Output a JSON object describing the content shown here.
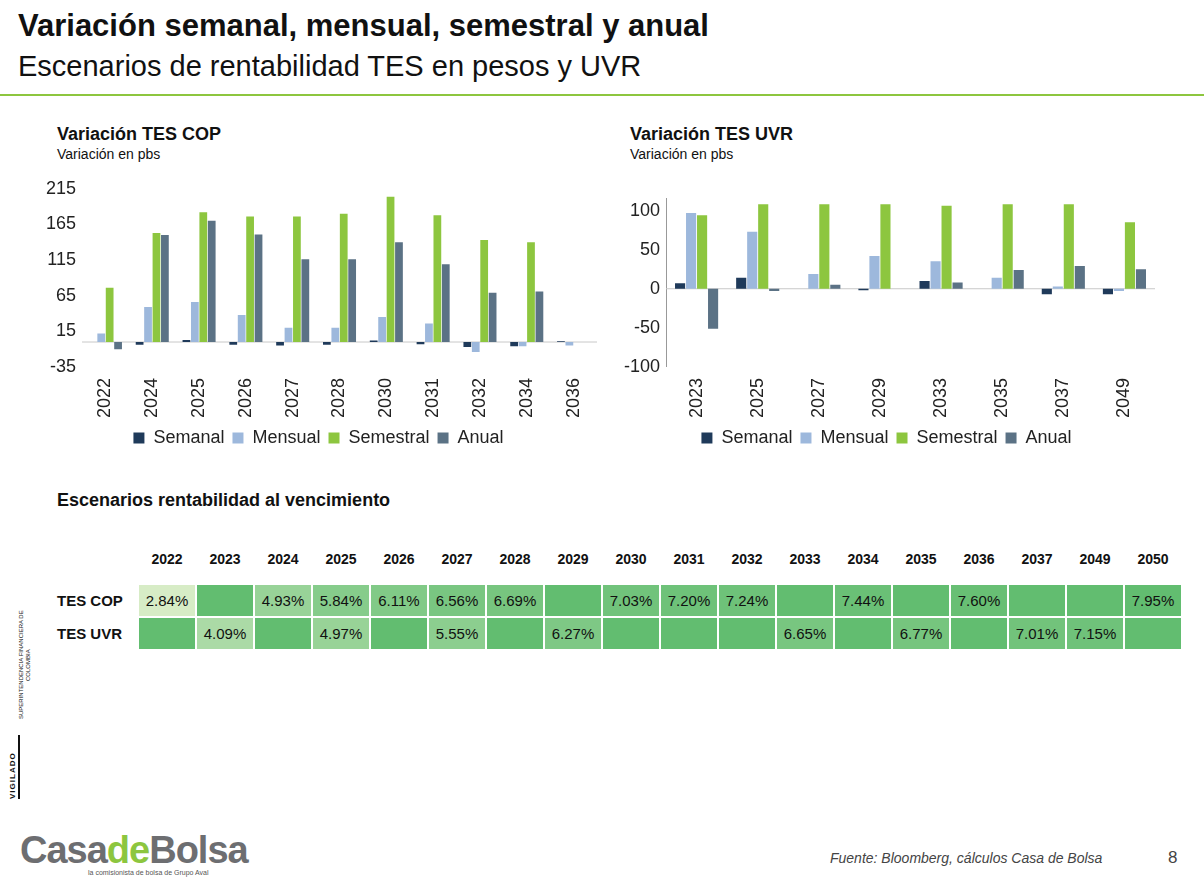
{
  "header": {
    "title": "Variación semanal, mensual, semestral y anual",
    "subtitle": "Escenarios de rentabilidad TES en pesos y UVR"
  },
  "chart_data": [
    {
      "type": "bar",
      "title": "Variación TES COP",
      "subtitle": "Variación en pbs",
      "categories": [
        "2022",
        "2024",
        "2025",
        "2026",
        "2027",
        "2028",
        "2030",
        "2031",
        "2032",
        "2034",
        "2036"
      ],
      "series": [
        {
          "name": "Semanal",
          "color": "#1f3a5a",
          "values": [
            0,
            -4,
            3,
            -4,
            -5,
            -4,
            2,
            -3,
            -7,
            -6,
            1
          ]
        },
        {
          "name": "Mensual",
          "color": "#9db8dc",
          "values": [
            12,
            49,
            56,
            38,
            20,
            20,
            35,
            26,
            -14,
            -6,
            -5
          ]
        },
        {
          "name": "Semestral",
          "color": "#8dc63f",
          "values": [
            76,
            153,
            182,
            176,
            176,
            180,
            204,
            178,
            143,
            140,
            0
          ]
        },
        {
          "name": "Anual",
          "color": "#5b7285",
          "values": [
            -10,
            150,
            170,
            151,
            116,
            116,
            140,
            109,
            69,
            71,
            0
          ]
        }
      ],
      "ylim": [
        -35,
        215
      ],
      "yticks": [
        -35,
        15,
        65,
        115,
        165,
        215
      ],
      "grid": false,
      "legend": "bottom"
    },
    {
      "type": "bar",
      "title": "Variación TES UVR",
      "subtitle": "Variación en pbs",
      "categories": [
        "2023",
        "2025",
        "2027",
        "2029",
        "2033",
        "2035",
        "2037",
        "2049"
      ],
      "series": [
        {
          "name": "Semanal",
          "color": "#1f3a5a",
          "values": [
            7,
            14,
            0,
            -2,
            10,
            0,
            -7,
            -7
          ]
        },
        {
          "name": "Mensual",
          "color": "#9db8dc",
          "values": [
            97,
            73,
            19,
            42,
            35,
            14,
            3,
            -3
          ]
        },
        {
          "name": "Semestral",
          "color": "#8dc63f",
          "values": [
            94,
            108,
            108,
            108,
            106,
            108,
            108,
            85
          ]
        },
        {
          "name": "Anual",
          "color": "#5b7285",
          "values": [
            -51,
            -3,
            5,
            0,
            8,
            24,
            29,
            25
          ]
        }
      ],
      "ylim": [
        -100,
        115
      ],
      "yticks": [
        -100,
        -50,
        0,
        50,
        100
      ],
      "grid": false,
      "legend": "bottom"
    }
  ],
  "table": {
    "title": "Escenarios rentabilidad al vencimiento",
    "columns": [
      "2022",
      "2023",
      "2024",
      "2025",
      "2026",
      "2027",
      "2028",
      "2029",
      "2030",
      "2031",
      "2032",
      "2033",
      "2034",
      "2035",
      "2036",
      "2037",
      "2049",
      "2050"
    ],
    "rows": [
      {
        "label": "TES COP",
        "cells": [
          "2.84%",
          null,
          "4.93%",
          "5.84%",
          "6.11%",
          "6.56%",
          "6.69%",
          null,
          "7.03%",
          "7.20%",
          "7.24%",
          null,
          "7.44%",
          null,
          "7.60%",
          null,
          null,
          "7.95%"
        ]
      },
      {
        "label": "TES UVR",
        "cells": [
          null,
          "4.09%",
          null,
          "4.97%",
          null,
          "5.55%",
          null,
          "6.27%",
          null,
          null,
          null,
          "6.65%",
          null,
          "6.77%",
          null,
          "7.01%",
          "7.15%",
          null
        ]
      }
    ]
  },
  "side_text": {
    "organization": "SUPERINTENDENCIA FINANCIERA DE COLOMBIA",
    "stamp": "VIGILADO"
  },
  "logo": {
    "parts": [
      "Casa",
      "de",
      "Bolsa"
    ],
    "tagline": "la comisionista de bolsa de Grupo Aval"
  },
  "footer": {
    "source": "Fuente: Bloomberg, cálculos Casa de Bolsa",
    "page": "8"
  }
}
